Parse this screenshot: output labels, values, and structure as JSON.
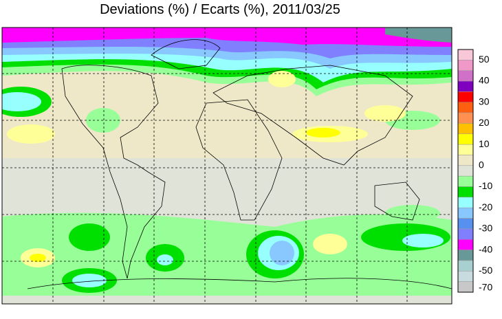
{
  "title": "Deviations (%) / Ecarts (%), 2011/03/25",
  "legend": {
    "colors": [
      "#f8c8d8",
      "#f098c8",
      "#d070c8",
      "#8000c0",
      "#ff0000",
      "#ff6010",
      "#ff9050",
      "#ffc000",
      "#ffff00",
      "#ffff98",
      "#eee8c8",
      "#e0e4d8",
      "#98ff98",
      "#00e000",
      "#98ffff",
      "#88c8ff",
      "#5890f0",
      "#8080ff",
      "#ff00ff",
      "#689898",
      "#a8d0d0",
      "#c8dce0",
      "#c8c8c8"
    ],
    "labels": [
      "50",
      "40",
      "30",
      "20",
      "10",
      "0",
      "-10",
      "-20",
      "-30",
      "-40",
      "-50",
      "-70"
    ]
  }
}
